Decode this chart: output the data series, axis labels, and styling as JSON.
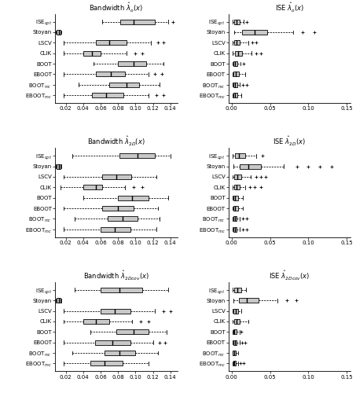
{
  "row_titles_left": [
    "Bandwidth $\\hat{\\lambda}_o(x)$",
    "Bandwidth $\\hat{\\lambda}_{2D}(x)$",
    "Bandwidth $\\hat{\\lambda}_{2Dcov}(x)$"
  ],
  "row_titles_right": [
    "ISE $\\hat{\\lambda}_o(x)$",
    "ISE $\\hat{\\lambda}_{2D}(x)$",
    "ISE $\\hat{\\lambda}_{2Dcov}(x)$"
  ],
  "ylabels_raw": [
    "ISE_opt",
    "Stoyan",
    "LSCV",
    "CLIK",
    "BOOT",
    "EBOOT",
    "BOOT_mc",
    "EBOOT_mc"
  ],
  "bw_xlim": [
    0.008,
    0.148
  ],
  "ise_xlim": [
    -0.004,
    0.155
  ],
  "bw_xticks": [
    0.02,
    0.04,
    0.06,
    0.08,
    0.1,
    0.12,
    0.14
  ],
  "ise_xticks": [
    0.0,
    0.05,
    0.1,
    0.15
  ],
  "box_color": "#c8c8c8",
  "bw_data": [
    [
      {
        "q1": 0.083,
        "med": 0.098,
        "q3": 0.122,
        "lo": 0.062,
        "hi": 0.138,
        "fliers": [
          0.143
        ]
      },
      {
        "q1": 0.01,
        "med": 0.012,
        "q3": 0.014,
        "lo": 0.009,
        "hi": 0.015,
        "fliers": []
      },
      {
        "q1": 0.055,
        "med": 0.07,
        "q3": 0.09,
        "lo": 0.018,
        "hi": 0.118,
        "fliers": [
          0.126,
          0.132
        ]
      },
      {
        "q1": 0.04,
        "med": 0.05,
        "q3": 0.06,
        "lo": 0.018,
        "hi": 0.09,
        "fliers": [
          0.1,
          0.108
        ]
      },
      {
        "q1": 0.08,
        "med": 0.098,
        "q3": 0.112,
        "lo": 0.052,
        "hi": 0.132,
        "fliers": []
      },
      {
        "q1": 0.055,
        "med": 0.072,
        "q3": 0.088,
        "lo": 0.018,
        "hi": 0.115,
        "fliers": [
          0.122,
          0.13
        ]
      },
      {
        "q1": 0.07,
        "med": 0.09,
        "q3": 0.104,
        "lo": 0.035,
        "hi": 0.128,
        "fliers": []
      },
      {
        "q1": 0.05,
        "med": 0.066,
        "q3": 0.086,
        "lo": 0.018,
        "hi": 0.115,
        "fliers": [
          0.124,
          0.132
        ]
      }
    ],
    [
      {
        "q1": 0.082,
        "med": 0.102,
        "q3": 0.122,
        "lo": 0.028,
        "hi": 0.14,
        "fliers": []
      },
      {
        "q1": 0.01,
        "med": 0.012,
        "q3": 0.014,
        "lo": 0.009,
        "hi": 0.015,
        "fliers": []
      },
      {
        "q1": 0.062,
        "med": 0.078,
        "q3": 0.095,
        "lo": 0.018,
        "hi": 0.124,
        "fliers": []
      },
      {
        "q1": 0.04,
        "med": 0.055,
        "q3": 0.062,
        "lo": 0.014,
        "hi": 0.088,
        "fliers": [
          0.098,
          0.108
        ]
      },
      {
        "q1": 0.08,
        "med": 0.096,
        "q3": 0.115,
        "lo": 0.04,
        "hi": 0.138,
        "fliers": []
      },
      {
        "q1": 0.062,
        "med": 0.08,
        "q3": 0.098,
        "lo": 0.018,
        "hi": 0.126,
        "fliers": []
      },
      {
        "q1": 0.068,
        "med": 0.085,
        "q3": 0.102,
        "lo": 0.03,
        "hi": 0.128,
        "fliers": []
      },
      {
        "q1": 0.06,
        "med": 0.076,
        "q3": 0.094,
        "lo": 0.018,
        "hi": 0.124,
        "fliers": []
      }
    ],
    [
      {
        "q1": 0.06,
        "med": 0.082,
        "q3": 0.108,
        "lo": 0.03,
        "hi": 0.138,
        "fliers": []
      },
      {
        "q1": 0.01,
        "med": 0.012,
        "q3": 0.014,
        "lo": 0.009,
        "hi": 0.015,
        "fliers": []
      },
      {
        "q1": 0.06,
        "med": 0.076,
        "q3": 0.094,
        "lo": 0.018,
        "hi": 0.122,
        "fliers": [
          0.132,
          0.14
        ]
      },
      {
        "q1": 0.04,
        "med": 0.055,
        "q3": 0.07,
        "lo": 0.018,
        "hi": 0.096,
        "fliers": [
          0.106,
          0.115
        ]
      },
      {
        "q1": 0.078,
        "med": 0.098,
        "q3": 0.115,
        "lo": 0.048,
        "hi": 0.136,
        "fliers": []
      },
      {
        "q1": 0.054,
        "med": 0.074,
        "q3": 0.094,
        "lo": 0.018,
        "hi": 0.12,
        "fliers": [
          0.128,
          0.134
        ]
      },
      {
        "q1": 0.065,
        "med": 0.082,
        "q3": 0.1,
        "lo": 0.028,
        "hi": 0.126,
        "fliers": []
      },
      {
        "q1": 0.048,
        "med": 0.065,
        "q3": 0.085,
        "lo": 0.018,
        "hi": 0.115,
        "fliers": []
      }
    ]
  ],
  "ise_data": [
    [
      {
        "q1": 0.003,
        "med": 0.006,
        "q3": 0.01,
        "lo": 0.001,
        "hi": 0.016,
        "fliers": [
          0.02
        ]
      },
      {
        "q1": 0.014,
        "med": 0.03,
        "q3": 0.046,
        "lo": 0.003,
        "hi": 0.08,
        "fliers": [
          0.092,
          0.108
        ]
      },
      {
        "q1": 0.003,
        "med": 0.006,
        "q3": 0.01,
        "lo": 0.001,
        "hi": 0.022,
        "fliers": [
          0.027,
          0.032
        ]
      },
      {
        "q1": 0.004,
        "med": 0.008,
        "q3": 0.014,
        "lo": 0.001,
        "hi": 0.026,
        "fliers": [
          0.032,
          0.038
        ]
      },
      {
        "q1": 0.002,
        "med": 0.004,
        "q3": 0.007,
        "lo": 0.001,
        "hi": 0.012,
        "fliers": [
          0.016
        ]
      },
      {
        "q1": 0.002,
        "med": 0.005,
        "q3": 0.009,
        "lo": 0.001,
        "hi": 0.018,
        "fliers": []
      },
      {
        "q1": 0.002,
        "med": 0.004,
        "q3": 0.007,
        "lo": 0.001,
        "hi": 0.011,
        "fliers": [
          0.015,
          0.02
        ]
      },
      {
        "q1": 0.002,
        "med": 0.004,
        "q3": 0.007,
        "lo": 0.001,
        "hi": 0.013,
        "fliers": []
      }
    ],
    [
      {
        "q1": 0.004,
        "med": 0.009,
        "q3": 0.018,
        "lo": 0.001,
        "hi": 0.032,
        "fliers": [
          0.04
        ]
      },
      {
        "q1": 0.01,
        "med": 0.022,
        "q3": 0.038,
        "lo": 0.002,
        "hi": 0.068,
        "fliers": [
          0.085,
          0.1,
          0.115,
          0.13
        ]
      },
      {
        "q1": 0.003,
        "med": 0.007,
        "q3": 0.013,
        "lo": 0.001,
        "hi": 0.025,
        "fliers": [
          0.032,
          0.038,
          0.044
        ]
      },
      {
        "q1": 0.003,
        "med": 0.006,
        "q3": 0.01,
        "lo": 0.001,
        "hi": 0.018,
        "fliers": [
          0.024,
          0.03,
          0.038
        ]
      },
      {
        "q1": 0.002,
        "med": 0.004,
        "q3": 0.008,
        "lo": 0.001,
        "hi": 0.015,
        "fliers": []
      },
      {
        "q1": 0.002,
        "med": 0.004,
        "q3": 0.008,
        "lo": 0.001,
        "hi": 0.015,
        "fliers": []
      },
      {
        "q1": 0.002,
        "med": 0.004,
        "q3": 0.006,
        "lo": 0.001,
        "hi": 0.011,
        "fliers": [
          0.015,
          0.02
        ]
      },
      {
        "q1": 0.002,
        "med": 0.004,
        "q3": 0.006,
        "lo": 0.001,
        "hi": 0.011,
        "fliers": [
          0.015,
          0.02
        ]
      }
    ],
    [
      {
        "q1": 0.003,
        "med": 0.007,
        "q3": 0.013,
        "lo": 0.001,
        "hi": 0.019,
        "fliers": []
      },
      {
        "q1": 0.009,
        "med": 0.02,
        "q3": 0.035,
        "lo": 0.002,
        "hi": 0.06,
        "fliers": [
          0.072,
          0.084
        ]
      },
      {
        "q1": 0.002,
        "med": 0.005,
        "q3": 0.008,
        "lo": 0.001,
        "hi": 0.013,
        "fliers": []
      },
      {
        "q1": 0.003,
        "med": 0.006,
        "q3": 0.01,
        "lo": 0.001,
        "hi": 0.022,
        "fliers": []
      },
      {
        "q1": 0.002,
        "med": 0.003,
        "q3": 0.006,
        "lo": 0.001,
        "hi": 0.01,
        "fliers": [
          0.013
        ]
      },
      {
        "q1": 0.002,
        "med": 0.004,
        "q3": 0.006,
        "lo": 0.001,
        "hi": 0.01,
        "fliers": [
          0.014,
          0.018
        ]
      },
      {
        "q1": 0.001,
        "med": 0.003,
        "q3": 0.005,
        "lo": 0.001,
        "hi": 0.008,
        "fliers": []
      },
      {
        "q1": 0.002,
        "med": 0.003,
        "q3": 0.005,
        "lo": 0.001,
        "hi": 0.008,
        "fliers": [
          0.012,
          0.016
        ]
      }
    ]
  ]
}
